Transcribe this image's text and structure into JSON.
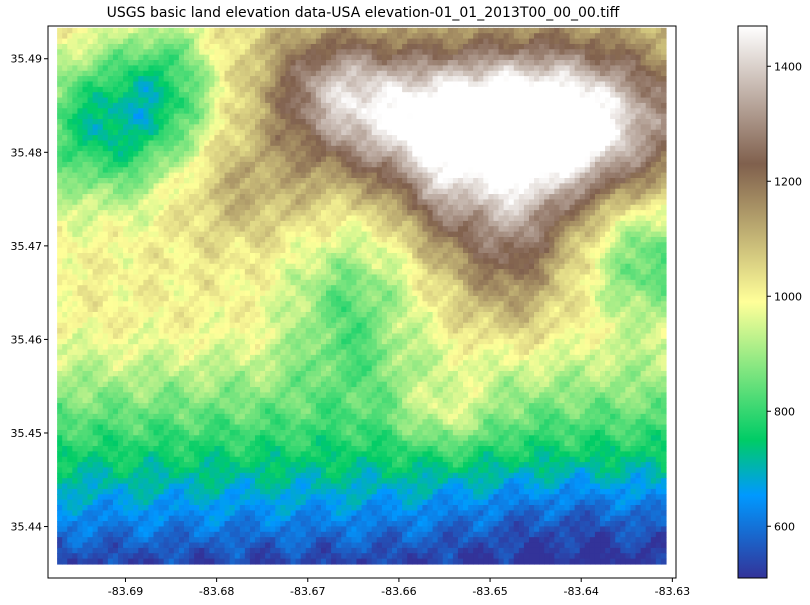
{
  "chart_data": {
    "type": "heatmap",
    "title": "USGS basic land elevation data-USA elevation-01_01_2013T00_00_00.tiff",
    "xlabel": "",
    "ylabel": "",
    "colormap": "terrain",
    "x_ticks": [
      "-83.69",
      "-83.68",
      "-83.67",
      "-83.66",
      "-83.65",
      "-83.64",
      "-83.63"
    ],
    "y_ticks": [
      "35.49",
      "35.48",
      "35.47",
      "35.46",
      "35.45",
      "35.44"
    ],
    "xlim": [
      -83.6985,
      -83.6296
    ],
    "ylim": [
      35.4345,
      35.4935
    ],
    "data_extent": {
      "lon": [
        -83.6975,
        -83.6307
      ],
      "lat": [
        35.436,
        35.4933
      ]
    },
    "colorbar": {
      "ticks": [
        "600",
        "800",
        "1000",
        "1200",
        "1400"
      ],
      "range": [
        510,
        1470
      ]
    },
    "grid": false,
    "elevation_features": {
      "ridge_crest_max": 1460,
      "valley_floor_min": 520
    }
  }
}
